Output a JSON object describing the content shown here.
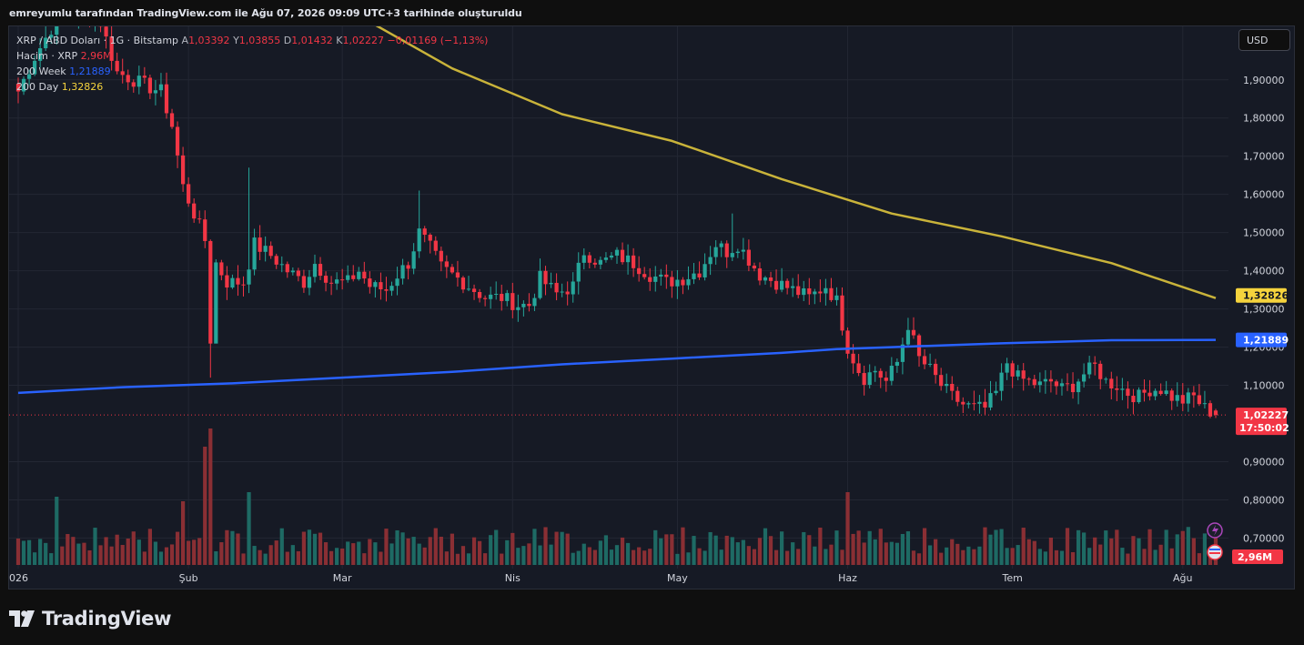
{
  "header": {
    "caption": "emreyumlu tarafından TradingView.com ile Ağu 07, 2026 09:09 UTC+3 tarihinde oluşturuldu"
  },
  "legend": {
    "symbol": "XRP / ABD Doları · 1G · Bitstamp",
    "open_label": "A",
    "open": "1,03392",
    "high_label": "Y",
    "high": "1,03855",
    "low_label": "D",
    "low": "1,01432",
    "close_label": "K",
    "close": "1,02227",
    "change": "−0,01169 (−1,13%)",
    "volume_label": "Hacim · XRP",
    "volume": "2,96M",
    "ma_week_label": "200 Week",
    "ma_week": "1,21889",
    "ma_day_label": "200 Day",
    "ma_day": "1,32826"
  },
  "currency_button": "USD",
  "footer": {
    "brand": "TradingView"
  },
  "colors": {
    "up": "#26a69a",
    "down": "#f23645",
    "ma_week": "#2962ff",
    "ma_day": "#c9b33a",
    "vol_up": "#1e6a64",
    "vol_down": "#8a2f34",
    "background": "#161a25",
    "grid": "#232733"
  },
  "chart_data": {
    "type": "candlestick",
    "symbol": "XRP / ABD Doları",
    "interval": "1G",
    "y_ticks": [
      "1,90000",
      "1,80000",
      "1,70000",
      "1,60000",
      "1,50000",
      "1,40000",
      "1,30000",
      "1,20000",
      "1,10000",
      "0,90000",
      "0,80000",
      "0,70000"
    ],
    "ylim": [
      0.62,
      2.04
    ],
    "x_labels": [
      {
        "label": "026",
        "day": 1
      },
      {
        "label": "Şub",
        "day": 32
      },
      {
        "label": "Mar",
        "day": 60
      },
      {
        "label": "Nis",
        "day": 91
      },
      {
        "label": "May",
        "day": 121
      },
      {
        "label": "Haz",
        "day": 152
      },
      {
        "label": "Tem",
        "day": 182
      },
      {
        "label": "Ağu",
        "day": 213
      }
    ],
    "last_day": 219,
    "anchors": [
      [
        1,
        1.87
      ],
      [
        4,
        1.96
      ],
      [
        8,
        2.06
      ],
      [
        12,
        2.08
      ],
      [
        16,
        2.05
      ],
      [
        19,
        1.92
      ],
      [
        22,
        1.9
      ],
      [
        25,
        1.88
      ],
      [
        27,
        1.87
      ],
      [
        29,
        1.78
      ],
      [
        31,
        1.62
      ],
      [
        33,
        1.55
      ],
      [
        35,
        1.48
      ],
      [
        36,
        1.22
      ],
      [
        37,
        1.42
      ],
      [
        39,
        1.37
      ],
      [
        42,
        1.37
      ],
      [
        44,
        1.47
      ],
      [
        47,
        1.44
      ],
      [
        50,
        1.4
      ],
      [
        53,
        1.37
      ],
      [
        55,
        1.42
      ],
      [
        58,
        1.37
      ],
      [
        61,
        1.37
      ],
      [
        63,
        1.4
      ],
      [
        65,
        1.36
      ],
      [
        68,
        1.35
      ],
      [
        70,
        1.39
      ],
      [
        72,
        1.42
      ],
      [
        74,
        1.5
      ],
      [
        76,
        1.46
      ],
      [
        78,
        1.41
      ],
      [
        80,
        1.39
      ],
      [
        83,
        1.36
      ],
      [
        86,
        1.33
      ],
      [
        89,
        1.33
      ],
      [
        92,
        1.31
      ],
      [
        94,
        1.31
      ],
      [
        96,
        1.38
      ],
      [
        99,
        1.34
      ],
      [
        102,
        1.36
      ],
      [
        104,
        1.45
      ],
      [
        107,
        1.42
      ],
      [
        110,
        1.44
      ],
      [
        113,
        1.42
      ],
      [
        116,
        1.39
      ],
      [
        119,
        1.37
      ],
      [
        122,
        1.38
      ],
      [
        125,
        1.4
      ],
      [
        128,
        1.47
      ],
      [
        130,
        1.45
      ],
      [
        132,
        1.47
      ],
      [
        134,
        1.43
      ],
      [
        136,
        1.39
      ],
      [
        139,
        1.37
      ],
      [
        142,
        1.35
      ],
      [
        145,
        1.33
      ],
      [
        148,
        1.36
      ],
      [
        150,
        1.32
      ],
      [
        152,
        1.2
      ],
      [
        154,
        1.14
      ],
      [
        155,
        1.12
      ],
      [
        157,
        1.14
      ],
      [
        159,
        1.11
      ],
      [
        161,
        1.16
      ],
      [
        163,
        1.26
      ],
      [
        165,
        1.17
      ],
      [
        167,
        1.14
      ],
      [
        169,
        1.1
      ],
      [
        171,
        1.07
      ],
      [
        173,
        1.05
      ],
      [
        175,
        1.04
      ],
      [
        177,
        1.04
      ],
      [
        179,
        1.08
      ],
      [
        181,
        1.16
      ],
      [
        183,
        1.12
      ],
      [
        185,
        1.11
      ],
      [
        187,
        1.1
      ],
      [
        189,
        1.11
      ],
      [
        191,
        1.09
      ],
      [
        193,
        1.1
      ],
      [
        195,
        1.13
      ],
      [
        197,
        1.15
      ],
      [
        199,
        1.11
      ],
      [
        201,
        1.1
      ],
      [
        203,
        1.08
      ],
      [
        205,
        1.07
      ],
      [
        207,
        1.09
      ],
      [
        209,
        1.09
      ],
      [
        211,
        1.07
      ],
      [
        213,
        1.06
      ],
      [
        215,
        1.07
      ],
      [
        217,
        1.04
      ],
      [
        219,
        1.02227
      ]
    ],
    "last_candle": {
      "open": 1.03392,
      "high": 1.03855,
      "low": 1.01432,
      "close": 1.02227
    },
    "volume_last": "2,96M",
    "ma_200_week": {
      "label": "200 Week",
      "points": [
        [
          1,
          1.08
        ],
        [
          20,
          1.095
        ],
        [
          40,
          1.105
        ],
        [
          60,
          1.12
        ],
        [
          80,
          1.135
        ],
        [
          100,
          1.155
        ],
        [
          120,
          1.17
        ],
        [
          140,
          1.185
        ],
        [
          150,
          1.195
        ],
        [
          160,
          1.2
        ],
        [
          180,
          1.21
        ],
        [
          200,
          1.218
        ],
        [
          219,
          1.21889
        ]
      ]
    },
    "ma_200_day": {
      "label": "200 Day",
      "points": [
        [
          64,
          2.06
        ],
        [
          80,
          1.93
        ],
        [
          100,
          1.81
        ],
        [
          120,
          1.74
        ],
        [
          140,
          1.64
        ],
        [
          160,
          1.55
        ],
        [
          180,
          1.49
        ],
        [
          200,
          1.42
        ],
        [
          219,
          1.32826
        ]
      ]
    },
    "price_badges": {
      "ma_day": "1,32826",
      "ma_week": "1,21889",
      "last": "1,02227",
      "countdown": "17:50:02",
      "volume": "2,96M"
    }
  }
}
